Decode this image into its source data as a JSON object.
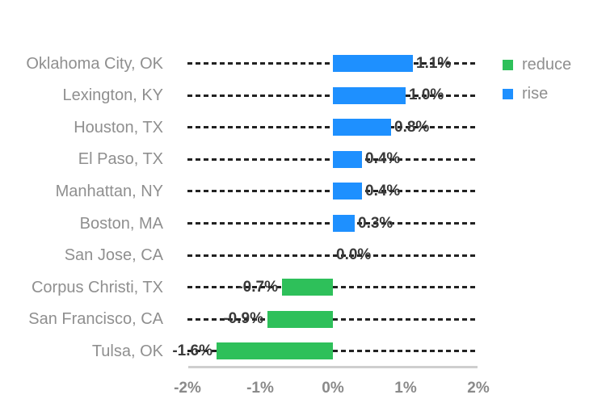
{
  "colors": {
    "background": "#ffffff",
    "gridline": "#222222",
    "axis_line": "#cfcfcf",
    "value_label": "#3a3a3a",
    "category_label": "#8f8f8f",
    "tick_label": "#8a8a8a"
  },
  "chart_data": {
    "type": "bar",
    "orientation": "horizontal",
    "xlim": [
      -2,
      2
    ],
    "xticks": [
      -2,
      -1,
      0,
      1,
      2
    ],
    "xticklabels": [
      "-2%",
      "-1%",
      "0%",
      "1%",
      "2%"
    ],
    "grid": "dashed horizontal line per row, from -2% to 2%",
    "legend_position": "top-right",
    "legend": [
      {
        "label": "reduce",
        "color": "#2EC05A"
      },
      {
        "label": "rise",
        "color": "#1E90FF"
      }
    ],
    "rows": [
      {
        "category": "Oklahoma City, OK",
        "value": 1.1,
        "label": "1.1%",
        "series": "rise"
      },
      {
        "category": "Lexington, KY",
        "value": 1.0,
        "label": "1.0%",
        "series": "rise"
      },
      {
        "category": "Houston, TX",
        "value": 0.8,
        "label": "0.8%",
        "series": "rise"
      },
      {
        "category": "El Paso, TX",
        "value": 0.4,
        "label": "0.4%",
        "series": "rise"
      },
      {
        "category": "Manhattan, NY",
        "value": 0.4,
        "label": "0.4%",
        "series": "rise"
      },
      {
        "category": "Boston, MA",
        "value": 0.3,
        "label": "0.3%",
        "series": "rise"
      },
      {
        "category": "San Jose, CA",
        "value": 0.0,
        "label": "0.0%",
        "series": "rise"
      },
      {
        "category": "Corpus Christi, TX",
        "value": -0.7,
        "label": "-0.7%",
        "series": "reduce"
      },
      {
        "category": "San Francisco, CA",
        "value": -0.9,
        "label": "-0.9%",
        "series": "reduce"
      },
      {
        "category": "Tulsa, OK",
        "value": -1.6,
        "label": "-1.6%",
        "series": "reduce"
      }
    ]
  }
}
